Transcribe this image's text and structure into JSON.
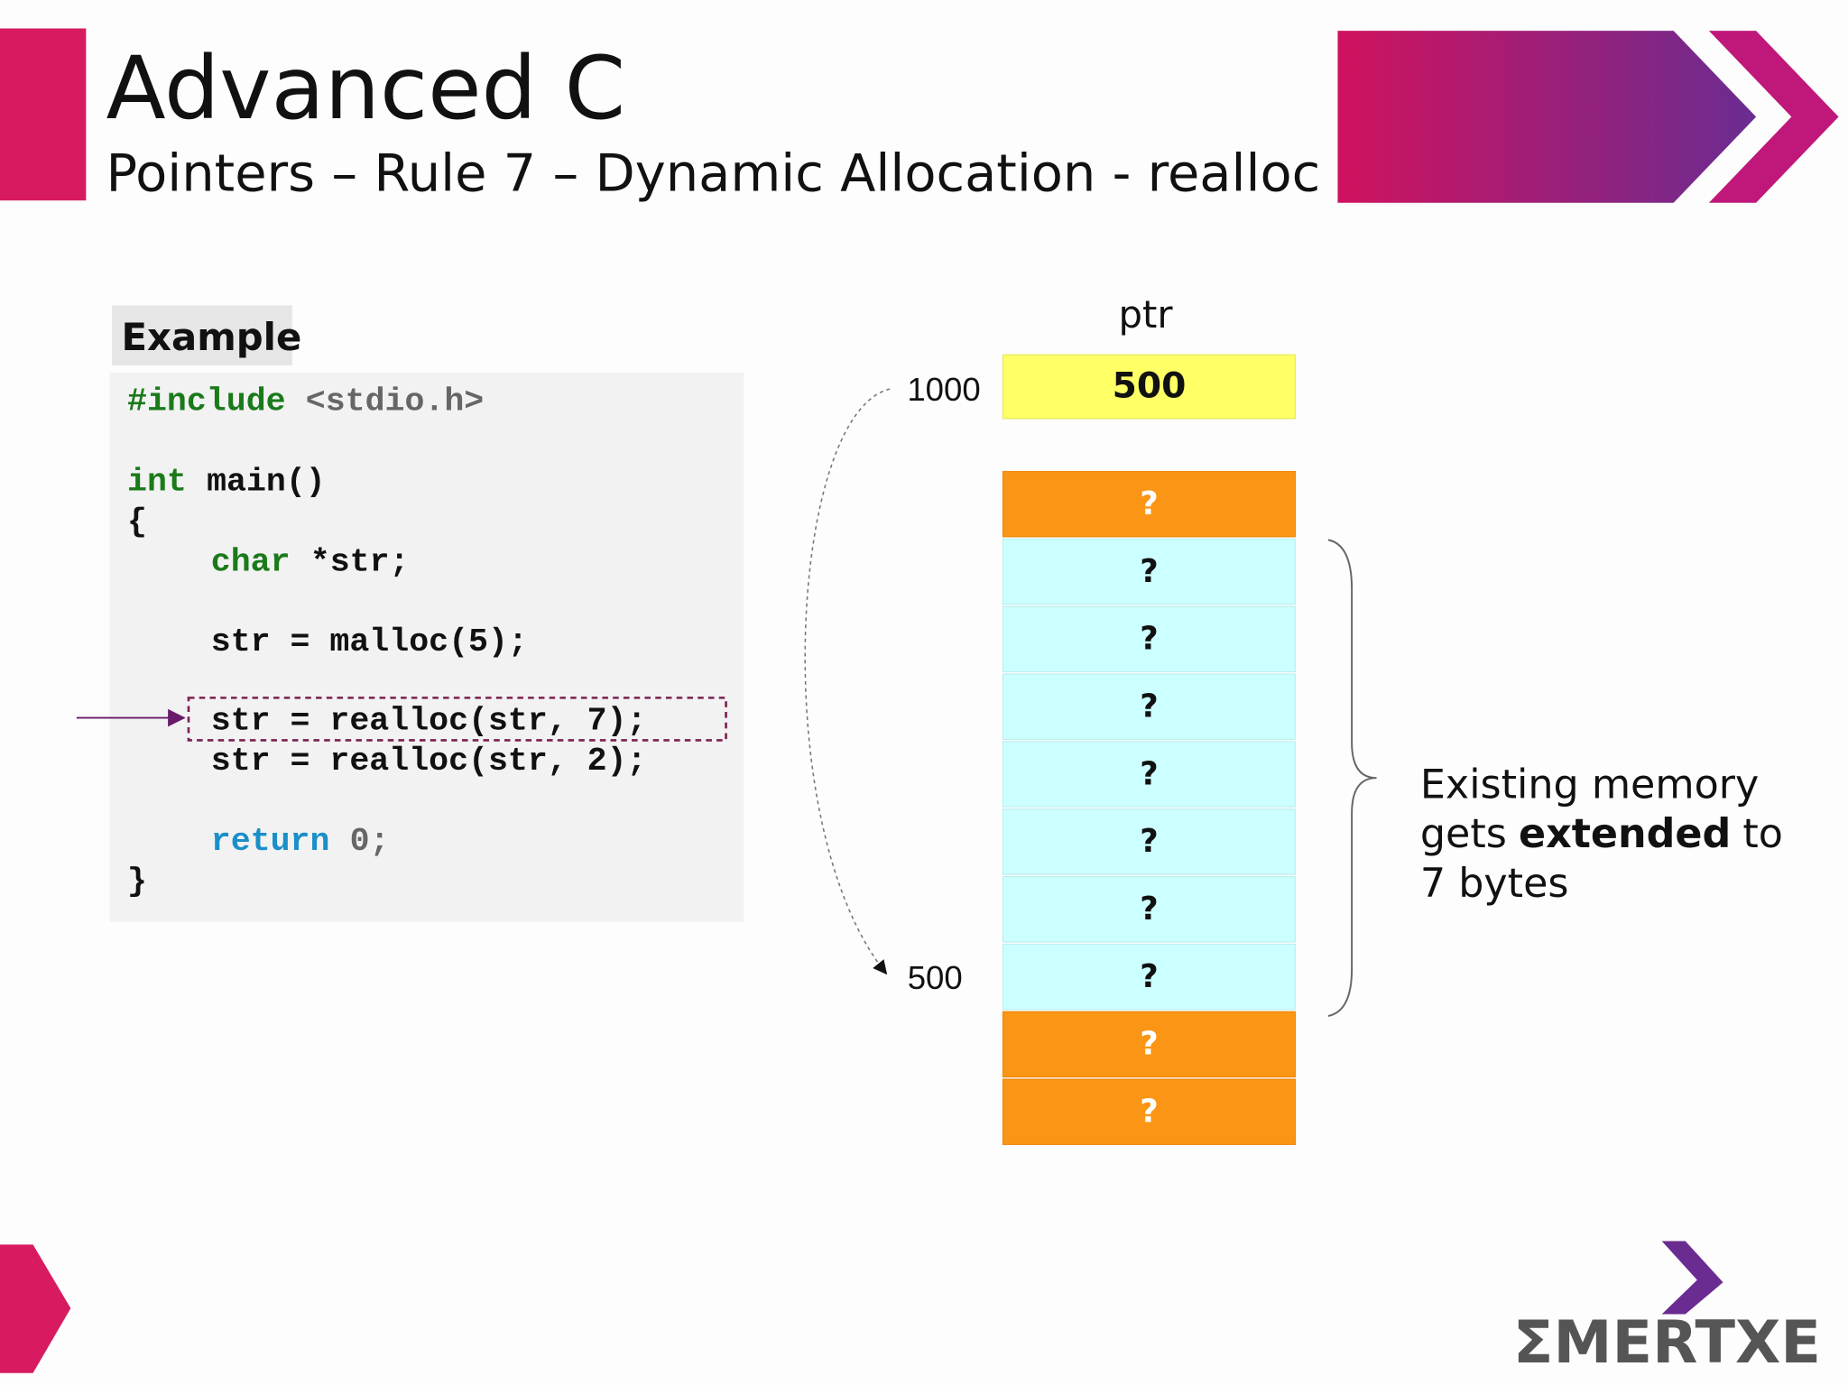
{
  "header": {
    "title": "Advanced C",
    "subtitle": "Pointers – Rule 7 – Dynamic Allocation - realloc"
  },
  "example": {
    "label": "Example",
    "code": [
      [
        "#include",
        "<stdio.h>"
      ],
      [
        "int",
        "main()"
      ],
      [
        "{"
      ],
      [
        "char",
        "*str;"
      ],
      [
        "str = malloc(5);"
      ],
      [
        "str = realloc(str, 7);"
      ],
      [
        "str = realloc(str, 2);"
      ],
      [
        "return",
        "0;"
      ],
      [
        "}"
      ]
    ]
  },
  "memory": {
    "pointer_name": "ptr",
    "pointer_address": "1000",
    "pointer_value": "500",
    "base_address": "500",
    "cells": [
      "?",
      "?",
      "?",
      "?",
      "?",
      "?",
      "?",
      "?",
      "?",
      "?"
    ]
  },
  "note": {
    "line1": "Existing memory",
    "line2_before": "gets",
    "line2_bold": "extended",
    "line2_after": "to",
    "line3": "7 bytes"
  },
  "logo": "ΣMERTXE"
}
